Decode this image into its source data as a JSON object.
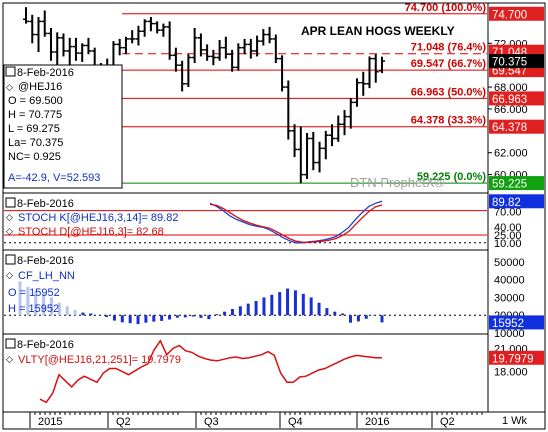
{
  "title": "APR LEAN HOGS WEEKLY",
  "watermark": "DTN ProphetX®",
  "timeframe_label": "1 Wk",
  "x_labels": [
    "2015",
    "Q2",
    "Q3",
    "Q4",
    "2016",
    "Q2"
  ],
  "colors": {
    "frame": "#000000",
    "bars": "#000000",
    "fib_line": "#e00000",
    "fib_text": "#d00000",
    "fib_zero": "#008000",
    "stoch_k": "#1f3fcf",
    "stoch_d": "#d81010",
    "oi_bars": "#1830d0",
    "vlty_line": "#d81010",
    "legend_blue": "#1030c0",
    "legend_red": "#d01010",
    "tag_red": "#e02020",
    "tag_black": "#000000",
    "tag_blue": "#1030e0",
    "tag_green": "#10a010"
  },
  "price_panel": {
    "legend": {
      "date": "8-Feb-2016",
      "symbol": "@HEJ16",
      "open": "O = 69.500",
      "high": "H = 70.775",
      "low": "L = 69.275",
      "last": "La= 70.375",
      "net_change": "NC= 0.925",
      "extra": "A=-42.9, V=52.593"
    },
    "axis_labels": [
      "72.000",
      "68.000",
      "66.000",
      "62.000",
      "60.000"
    ],
    "fib_levels": [
      {
        "label": "74.700 (100.0%)",
        "value": 74.7,
        "tag": "74.700"
      },
      {
        "label": "71.048 (76.4%)",
        "value": 71.048,
        "tag": "71.048"
      },
      {
        "label": "69.547 (66.7%)",
        "value": 69.547,
        "tag": "69.547"
      },
      {
        "label": "66.963 (50.0%)",
        "value": 66.963,
        "tag": "66.963"
      },
      {
        "label": "64.378 (33.3%)",
        "value": 64.378,
        "tag": "64.378"
      },
      {
        "label": "59.225 (0.0%)",
        "value": 59.225,
        "tag": "59.225"
      }
    ],
    "last_tag": "70.375"
  },
  "stoch_panel": {
    "legend": {
      "date": "8-Feb-2016",
      "k_label": "STOCH K[@HEJ16,3,14]= 89.82",
      "d_label": "STOCH D[@HEJ16,3]= 82.68"
    },
    "axis_labels": [
      "70.00",
      "40.00",
      "25.00",
      "10.00"
    ],
    "last_tag": "89.82"
  },
  "oi_panel": {
    "legend": {
      "date": "8-Feb-2016",
      "symbol": "CF_LH_NN",
      "open": "O = 15952",
      "high": "H = 15952"
    },
    "axis_labels": [
      "50000",
      "40000",
      "30000",
      "20000",
      "10000"
    ],
    "last_tag": "15952"
  },
  "vlty_panel": {
    "legend": {
      "date": "8-Feb-2016",
      "label": "VLTY[@HEJ16,21,251]= 19.7979"
    },
    "axis_labels": [
      "21.000",
      "18.000"
    ],
    "last_tag": "19.7979"
  },
  "chart_data": {
    "type": "line",
    "panels": [
      {
        "name": "price",
        "series_type": "ohlc",
        "y_range": [
          58.5,
          75.5
        ],
        "ohlc": [
          [
            74.2,
            75.3,
            73.8,
            74.0
          ],
          [
            74.0,
            74.6,
            72.0,
            72.8
          ],
          [
            72.8,
            74.4,
            71.2,
            74.0
          ],
          [
            74.0,
            75.0,
            72.6,
            72.9
          ],
          [
            72.9,
            73.4,
            70.4,
            71.2
          ],
          [
            71.2,
            73.0,
            69.4,
            72.5
          ],
          [
            72.5,
            72.9,
            70.8,
            71.3
          ],
          [
            71.3,
            72.5,
            69.8,
            71.7
          ],
          [
            71.7,
            72.5,
            70.4,
            71.1
          ],
          [
            71.1,
            72.0,
            70.3,
            71.8
          ],
          [
            71.8,
            72.5,
            71.0,
            71.3
          ],
          [
            71.3,
            71.6,
            68.8,
            69.4
          ],
          [
            69.4,
            70.2,
            67.0,
            67.7
          ],
          [
            67.7,
            70.6,
            66.8,
            70.0
          ],
          [
            70.0,
            72.2,
            69.5,
            71.9
          ],
          [
            71.9,
            72.4,
            70.9,
            71.6
          ],
          [
            71.6,
            72.6,
            71.0,
            72.4
          ],
          [
            72.4,
            73.2,
            72.0,
            72.4
          ],
          [
            72.4,
            73.6,
            71.8,
            73.1
          ],
          [
            73.1,
            74.2,
            72.6,
            74.0
          ],
          [
            74.0,
            74.4,
            73.1,
            73.8
          ],
          [
            73.8,
            74.0,
            72.9,
            73.2
          ],
          [
            73.2,
            73.8,
            72.6,
            73.5
          ],
          [
            73.5,
            74.0,
            70.5,
            70.9
          ],
          [
            70.9,
            71.6,
            69.4,
            70.0
          ],
          [
            70.0,
            70.4,
            67.6,
            68.3
          ],
          [
            68.3,
            71.0,
            68.0,
            70.7
          ],
          [
            70.7,
            73.4,
            70.2,
            72.5
          ],
          [
            72.5,
            72.9,
            70.8,
            71.4
          ],
          [
            71.4,
            71.9,
            70.4,
            70.8
          ],
          [
            70.8,
            71.4,
            70.0,
            70.7
          ],
          [
            70.7,
            72.3,
            70.4,
            71.6
          ],
          [
            71.6,
            72.6,
            70.6,
            71.0
          ],
          [
            71.0,
            71.4,
            69.4,
            69.8
          ],
          [
            69.8,
            72.0,
            69.5,
            71.6
          ],
          [
            71.6,
            72.4,
            71.0,
            71.9
          ],
          [
            71.9,
            72.4,
            70.6,
            71.3
          ],
          [
            71.3,
            72.7,
            70.8,
            72.2
          ],
          [
            72.2,
            73.3,
            71.8,
            72.8
          ],
          [
            72.8,
            73.5,
            72.0,
            72.4
          ],
          [
            72.4,
            72.8,
            70.2,
            70.6
          ],
          [
            70.6,
            70.9,
            67.6,
            68.0
          ],
          [
            68.0,
            68.6,
            63.2,
            64.0
          ],
          [
            64.0,
            64.6,
            61.6,
            62.3
          ],
          [
            62.3,
            64.4,
            59.2,
            60.0
          ],
          [
            60.0,
            63.8,
            59.6,
            63.3
          ],
          [
            63.3,
            63.9,
            60.4,
            61.1
          ],
          [
            61.1,
            63.0,
            60.2,
            62.4
          ],
          [
            62.4,
            64.0,
            61.4,
            63.6
          ],
          [
            63.6,
            64.6,
            62.6,
            63.3
          ],
          [
            63.3,
            65.4,
            63.0,
            64.6
          ],
          [
            64.6,
            65.9,
            63.6,
            65.3
          ],
          [
            65.3,
            67.0,
            64.2,
            66.6
          ],
          [
            66.6,
            68.8,
            66.2,
            68.4
          ],
          [
            68.4,
            69.4,
            67.2,
            68.3
          ],
          [
            68.3,
            70.8,
            67.9,
            70.6
          ],
          [
            70.6,
            71.0,
            68.4,
            69.4
          ],
          [
            69.5,
            70.775,
            69.275,
            70.375
          ]
        ],
        "last": 70.375
      },
      {
        "name": "stochastic",
        "y_range": [
          0,
          100
        ],
        "series": [
          {
            "name": "STOCH K",
            "values": [
              86,
              80,
              72,
              62,
              55,
              50,
              45,
              42,
              40,
              35,
              28,
              20,
              14,
              10,
              10,
              12,
              13,
              15,
              18,
              22,
              30,
              40,
              55,
              68,
              80,
              86,
              89.82
            ]
          },
          {
            "name": "STOCH D",
            "values": [
              84,
              82,
              76,
              68,
              60,
              53,
              48,
              44,
              41,
              38,
              32,
              25,
              18,
              13,
              11,
              11,
              12,
              13,
              15,
              18,
              24,
              32,
              45,
              58,
              70,
              79,
              82.68
            ]
          }
        ]
      },
      {
        "name": "open_interest",
        "y_range": [
          10000,
          55000
        ],
        "baseline": 20000,
        "values": [
          39000,
          36000,
          34000,
          32000,
          30000,
          27000,
          25000,
          23000,
          21500,
          21000,
          20000,
          19000,
          17000,
          16000,
          15500,
          15000,
          15800,
          16400,
          16800,
          17600,
          18600,
          18800,
          19200,
          18500,
          17800,
          20600,
          22000,
          23500,
          25000,
          26500,
          28000,
          30000,
          31500,
          33000,
          35000,
          34000,
          32000,
          30000,
          27000,
          24000,
          22000,
          21000,
          15800,
          16500,
          18000,
          19800,
          15952
        ]
      },
      {
        "name": "volatility",
        "y_range": [
          13,
          22.5
        ],
        "values": [
          14.4,
          14.0,
          15.2,
          17.6,
          16.8,
          16.0,
          16.9,
          17.4,
          17.0,
          16.6,
          17.8,
          18.4,
          18.4,
          18.0,
          17.6,
          18.1,
          18.6,
          19.0,
          20.8,
          22.0,
          20.2,
          21.0,
          21.4,
          20.7,
          20.5,
          20.0,
          19.7,
          19.5,
          19.4,
          19.6,
          19.8,
          19.9,
          19.7,
          19.8,
          20.0,
          20.2,
          20.6,
          20.1,
          17.8,
          16.6,
          16.6,
          17.3,
          17.4,
          17.8,
          18.2,
          18.4,
          18.8,
          19.2,
          19.6,
          19.9,
          20.1,
          20.0,
          19.9,
          19.8,
          19.7979
        ]
      }
    ],
    "x_range_labels": [
      "2015",
      "Q2",
      "Q3",
      "Q4",
      "2016",
      "Q2"
    ]
  }
}
